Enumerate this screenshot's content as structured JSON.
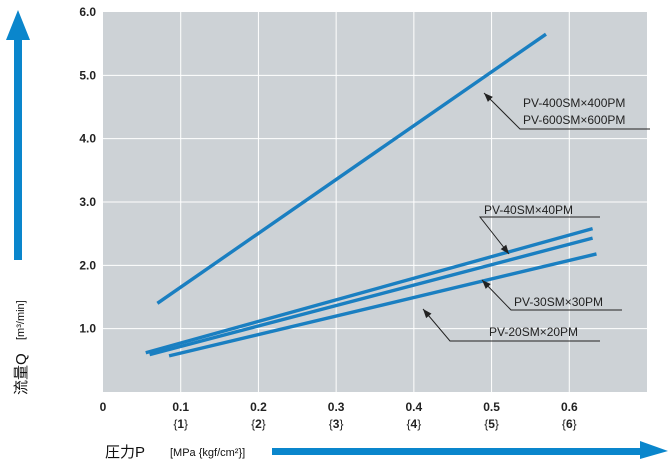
{
  "chart_data": {
    "type": "line",
    "xlabel": "圧力P",
    "xunit": "[MPa {kgf/cm²}]",
    "ylabel": "流量Q",
    "yunit": "[m³/min]",
    "xlim": [
      0,
      0.7
    ],
    "ylim": [
      0,
      6.0
    ],
    "grid": true,
    "x_ticks": [
      "0",
      "0.1",
      "0.2",
      "0.3",
      "0.4",
      "0.5",
      "0.6"
    ],
    "x_ticks_kgf": [
      "1",
      "2",
      "3",
      "4",
      "5",
      "6"
    ],
    "y_ticks": [
      "1.0",
      "2.0",
      "3.0",
      "4.0",
      "5.0",
      "6.0"
    ],
    "series": [
      {
        "name": "PV-400SM×400PM",
        "name2": "PV-600SM×600PM",
        "x": [
          0.07,
          0.57
        ],
        "y": [
          1.4,
          5.65
        ]
      },
      {
        "name": "PV-40SM×40PM",
        "x": [
          0.055,
          0.63
        ],
        "y": [
          0.62,
          2.58
        ]
      },
      {
        "name": "PV-30SM×30PM",
        "x": [
          0.06,
          0.63
        ],
        "y": [
          0.59,
          2.43
        ]
      },
      {
        "name": "PV-20SM×20PM",
        "x": [
          0.085,
          0.635
        ],
        "y": [
          0.57,
          2.18
        ]
      }
    ]
  },
  "colors": {
    "plot_bg": "#cdd2d6",
    "line": "#1a7fc1",
    "arrow": "#0a86cc"
  }
}
